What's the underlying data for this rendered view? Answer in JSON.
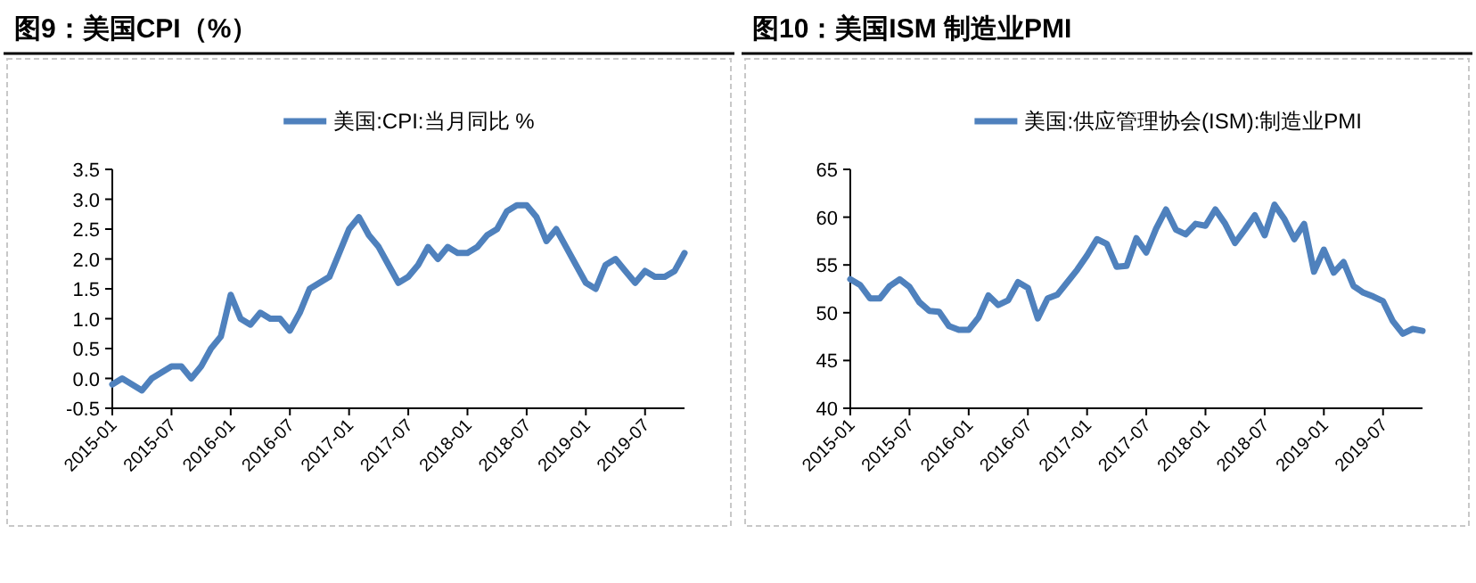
{
  "chart_data": [
    {
      "type": "line",
      "title": "图9：美国CPI（%）",
      "x": [
        "2015-01",
        "2015-02",
        "2015-03",
        "2015-04",
        "2015-05",
        "2015-06",
        "2015-07",
        "2015-08",
        "2015-09",
        "2015-10",
        "2015-11",
        "2015-12",
        "2016-01",
        "2016-02",
        "2016-03",
        "2016-04",
        "2016-05",
        "2016-06",
        "2016-07",
        "2016-08",
        "2016-09",
        "2016-10",
        "2016-11",
        "2016-12",
        "2017-01",
        "2017-02",
        "2017-03",
        "2017-04",
        "2017-05",
        "2017-06",
        "2017-07",
        "2017-08",
        "2017-09",
        "2017-10",
        "2017-11",
        "2017-12",
        "2018-01",
        "2018-02",
        "2018-03",
        "2018-04",
        "2018-05",
        "2018-06",
        "2018-07",
        "2018-08",
        "2018-09",
        "2018-10",
        "2018-11",
        "2018-12",
        "2019-01",
        "2019-02",
        "2019-03",
        "2019-04",
        "2019-05",
        "2019-06",
        "2019-07",
        "2019-08",
        "2019-09",
        "2019-10",
        "2019-11"
      ],
      "series": [
        {
          "name": "美国:CPI:当月同比 %",
          "color": "#4f81bd",
          "values": [
            -0.1,
            0.0,
            -0.1,
            -0.2,
            0.0,
            0.1,
            0.2,
            0.2,
            0.0,
            0.2,
            0.5,
            0.7,
            1.4,
            1.0,
            0.9,
            1.1,
            1.0,
            1.0,
            0.8,
            1.1,
            1.5,
            1.6,
            1.7,
            2.1,
            2.5,
            2.7,
            2.4,
            2.2,
            1.9,
            1.6,
            1.7,
            1.9,
            2.2,
            2.0,
            2.2,
            2.1,
            2.1,
            2.2,
            2.4,
            2.5,
            2.8,
            2.9,
            2.9,
            2.7,
            2.3,
            2.5,
            2.2,
            1.9,
            1.6,
            1.5,
            1.9,
            2.0,
            1.8,
            1.6,
            1.8,
            1.7,
            1.7,
            1.8,
            2.1
          ]
        }
      ],
      "xlim": [
        "2015-01",
        "2019-11"
      ],
      "xticks": [
        "2015-01",
        "2015-07",
        "2016-01",
        "2016-07",
        "2017-01",
        "2017-07",
        "2018-01",
        "2018-07",
        "2019-01",
        "2019-07"
      ],
      "ylim": [
        -0.5,
        3.5
      ],
      "yticks": [
        {
          "value": -0.5,
          "label": "-0.5"
        },
        {
          "value": 0,
          "label": "0.0"
        },
        {
          "value": 0.5,
          "label": "0.5"
        },
        {
          "value": 1,
          "label": "1.0"
        },
        {
          "value": 1.5,
          "label": "1.5"
        },
        {
          "value": 2,
          "label": "2.0"
        },
        {
          "value": 2.5,
          "label": "2.5"
        },
        {
          "value": 3,
          "label": "3.0"
        },
        {
          "value": 3.5,
          "label": "3.5"
        }
      ],
      "grid": false,
      "legend": "top",
      "marker": "none",
      "line_style": "solid"
    },
    {
      "type": "line",
      "title": "图10：美国ISM 制造业PMI",
      "x": [
        "2015-01",
        "2015-02",
        "2015-03",
        "2015-04",
        "2015-05",
        "2015-06",
        "2015-07",
        "2015-08",
        "2015-09",
        "2015-10",
        "2015-11",
        "2015-12",
        "2016-01",
        "2016-02",
        "2016-03",
        "2016-04",
        "2016-05",
        "2016-06",
        "2016-07",
        "2016-08",
        "2016-09",
        "2016-10",
        "2016-11",
        "2016-12",
        "2017-01",
        "2017-02",
        "2017-03",
        "2017-04",
        "2017-05",
        "2017-06",
        "2017-07",
        "2017-08",
        "2017-09",
        "2017-10",
        "2017-11",
        "2017-12",
        "2018-01",
        "2018-02",
        "2018-03",
        "2018-04",
        "2018-05",
        "2018-06",
        "2018-07",
        "2018-08",
        "2018-09",
        "2018-10",
        "2018-11",
        "2018-12",
        "2019-01",
        "2019-02",
        "2019-03",
        "2019-04",
        "2019-05",
        "2019-06",
        "2019-07",
        "2019-08",
        "2019-09",
        "2019-10",
        "2019-11"
      ],
      "series": [
        {
          "name": "美国:供应管理协会(ISM):制造业PMI",
          "color": "#4f81bd",
          "values": [
            53.5,
            52.9,
            51.5,
            51.5,
            52.8,
            53.5,
            52.7,
            51.1,
            50.2,
            50.1,
            48.6,
            48.2,
            48.2,
            49.5,
            51.8,
            50.8,
            51.3,
            53.2,
            52.6,
            49.4,
            51.5,
            51.9,
            53.2,
            54.5,
            56.0,
            57.7,
            57.2,
            54.8,
            54.9,
            57.8,
            56.3,
            58.8,
            60.8,
            58.7,
            58.2,
            59.3,
            59.1,
            60.8,
            59.3,
            57.3,
            58.7,
            60.2,
            58.1,
            61.3,
            59.8,
            57.7,
            59.3,
            54.3,
            56.6,
            54.2,
            55.3,
            52.8,
            52.1,
            51.7,
            51.2,
            49.1,
            47.8,
            48.3,
            48.1
          ]
        }
      ],
      "xlim": [
        "2015-01",
        "2019-11"
      ],
      "xticks": [
        "2015-01",
        "2015-07",
        "2016-01",
        "2016-07",
        "2017-01",
        "2017-07",
        "2018-01",
        "2018-07",
        "2019-01",
        "2019-07"
      ],
      "ylim": [
        40,
        65
      ],
      "yticks": [
        40,
        45,
        50,
        55,
        60,
        65
      ],
      "grid": false,
      "legend": "top",
      "marker": "none",
      "line_style": "solid"
    }
  ]
}
